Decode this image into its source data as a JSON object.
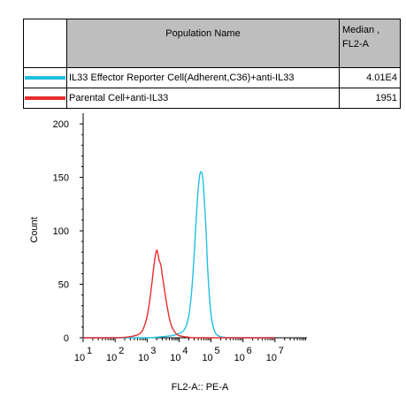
{
  "legend": {
    "header_name": "Population Name",
    "header_stat": "Median ,",
    "header_stat_param": "FL2-A",
    "rows": [
      {
        "name": "IL33 Effector Reporter Cell(Adherent,C36)+anti-IL33",
        "value": "4.01E4",
        "color": "#22bfe0"
      },
      {
        "name": "Parental Cell+anti-IL33",
        "value": "1951",
        "color": "#e82d2d"
      }
    ]
  },
  "chart_data": {
    "type": "line",
    "xlabel": "FL2-A:: PE-A",
    "ylabel": "Count",
    "xscale": "log",
    "xlim": [
      10,
      100000000.0
    ],
    "ylim": [
      0,
      210
    ],
    "yticks": [
      0,
      50,
      100,
      150,
      200
    ],
    "xtick_labels": [
      {
        "base": "10",
        "exp": "1"
      },
      {
        "base": "10",
        "exp": "2"
      },
      {
        "base": "10",
        "exp": "3"
      },
      {
        "base": "10",
        "exp": "4"
      },
      {
        "base": "10",
        "exp": "5"
      },
      {
        "base": "10",
        "exp": "6"
      },
      {
        "base": "10",
        "exp": "7"
      }
    ],
    "series": [
      {
        "name": "IL33 Effector Reporter Cell(Adherent,C36)+anti-IL33",
        "color": "#22bfe0",
        "x": [
          10,
          100,
          1000,
          3000,
          6000,
          10000,
          15000,
          20000,
          25000,
          30000,
          35000,
          40000,
          45000,
          50000,
          55000,
          60000,
          70000,
          80000,
          100000,
          130000,
          200000,
          500000,
          1000000,
          10000000
        ],
        "y": [
          0,
          0,
          0,
          1,
          2,
          4,
          8,
          20,
          45,
          80,
          115,
          140,
          153,
          155,
          150,
          135,
          100,
          60,
          22,
          6,
          1,
          0,
          0,
          0
        ]
      },
      {
        "name": "Parental Cell+anti-IL33",
        "color": "#e82d2d",
        "x": [
          10,
          100,
          300,
          600,
          800,
          1000,
          1200,
          1400,
          1600,
          1800,
          2000,
          2200,
          2400,
          2700,
          3000,
          3300,
          3700,
          4200,
          5000,
          6000,
          8000,
          10000,
          15000,
          30000,
          100000,
          1000000,
          10000000
        ],
        "y": [
          0,
          0,
          1,
          4,
          10,
          20,
          34,
          50,
          65,
          76,
          82,
          78,
          72,
          68,
          58,
          50,
          40,
          30,
          18,
          10,
          4,
          2,
          1,
          0,
          0,
          0,
          0
        ]
      }
    ]
  }
}
